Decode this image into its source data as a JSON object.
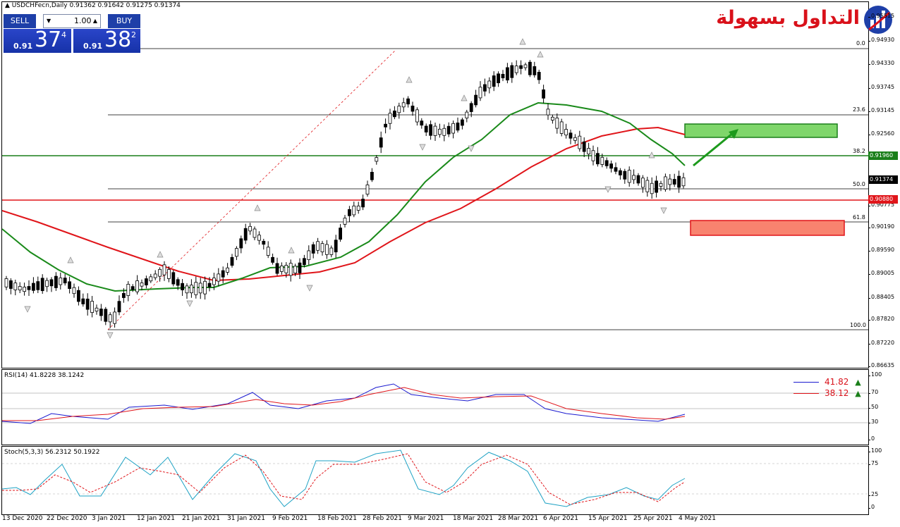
{
  "chart_header": {
    "symbol_info": "USDCHFecn,Daily  0.91362 0.91642 0.91275 0.91374"
  },
  "trade_panel": {
    "sell_label": "SELL",
    "buy_label": "BUY",
    "lot_value": "1.00",
    "sell_prefix": "0.91",
    "sell_big": "37",
    "sell_sup": "4",
    "buy_prefix": "0.91",
    "buy_big": "38",
    "buy_sup": "2"
  },
  "logo": {
    "text": "التداول بسهولة"
  },
  "price_axis": {
    "labels": [
      "0.95515",
      "0.94930",
      "0.94330",
      "0.93745",
      "0.93145",
      "0.92560",
      "0.91960",
      "0.91374",
      "0.90775",
      "0.90190",
      "0.89590",
      "0.89005",
      "0.88405",
      "0.87820",
      "0.87220",
      "0.86635"
    ],
    "current_price": "0.91374",
    "green_level": "0.91960",
    "red_level": "0.90880"
  },
  "fibonacci": {
    "levels": [
      "0.0",
      "23.6",
      "38.2",
      "50.0",
      "61.8",
      "100.0"
    ]
  },
  "rsi": {
    "title": "RSI(14) 41.8228 38.1242",
    "value_fast": "41.82",
    "value_slow": "38.12",
    "axis": [
      "100",
      "70",
      "50",
      "30",
      "0"
    ]
  },
  "stoch": {
    "title": "Stoch(5,3,3) 56.2312 50.1922",
    "axis": [
      "100",
      "75",
      "25",
      "0"
    ]
  },
  "time_axis": [
    "13 Dec 2020",
    "22 Dec 2020",
    "3 Jan 2021",
    "12 Jan 2021",
    "21 Jan 2021",
    "31 Jan 2021",
    "9 Feb 2021",
    "18 Feb 2021",
    "28 Feb 2021",
    "9 Mar 2021",
    "18 Mar 2021",
    "28 Mar 2021",
    "6 Apr 2021",
    "15 Apr 2021",
    "25 Apr 2021",
    "4 May 2021"
  ],
  "colors": {
    "green": "#1a7f1a",
    "red": "#e0151a",
    "accent_blue": "#1e3fa8"
  }
}
